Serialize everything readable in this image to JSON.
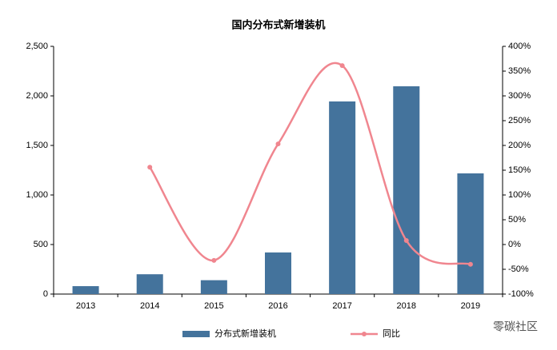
{
  "chart_data": {
    "type": "combo",
    "title": "国内分布式新增装机",
    "categories": [
      "2013",
      "2014",
      "2015",
      "2016",
      "2017",
      "2018",
      "2019"
    ],
    "series": [
      {
        "name": "分布式新增装机",
        "type": "bar",
        "color": "#44739c",
        "values": [
          80,
          200,
          140,
          420,
          1944,
          2097,
          1218
        ]
      },
      {
        "name": "同比",
        "type": "line",
        "axis": "y2",
        "color": "#f0868f",
        "values": [
          null,
          156,
          -32,
          203,
          361,
          8,
          -40
        ]
      }
    ],
    "ylim": [
      0,
      2500
    ],
    "yticks": [
      0,
      500,
      {
        "value": 1000,
        "label": "1,000"
      },
      {
        "value": 1500,
        "label": "1,500"
      },
      {
        "value": 2000,
        "label": "2,000"
      },
      {
        "value": 2500,
        "label": "2,500"
      }
    ],
    "y2lim": [
      -100,
      400
    ],
    "y2ticks": [
      {
        "value": -100,
        "label": "-100%"
      },
      {
        "value": -50,
        "label": "-50%"
      },
      {
        "value": 0,
        "label": "0%"
      },
      {
        "value": 50,
        "label": "50%"
      },
      {
        "value": 100,
        "label": "100%"
      },
      {
        "value": 150,
        "label": "150%"
      },
      {
        "value": 200,
        "label": "200%"
      },
      {
        "value": 250,
        "label": "250%"
      },
      {
        "value": 300,
        "label": "300%"
      },
      {
        "value": 350,
        "label": "350%"
      },
      {
        "value": 400,
        "label": "400%"
      }
    ],
    "legend": "bottom",
    "watermark": "零碳社区"
  }
}
